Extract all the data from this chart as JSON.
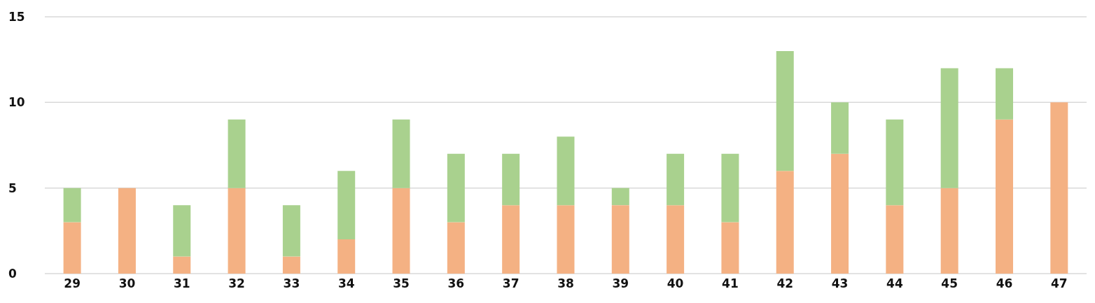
{
  "chart_data": {
    "type": "bar",
    "stacked": true,
    "categories": [
      "29",
      "30",
      "31",
      "32",
      "33",
      "34",
      "35",
      "36",
      "37",
      "38",
      "39",
      "40",
      "41",
      "42",
      "43",
      "44",
      "45",
      "46",
      "47"
    ],
    "series": [
      {
        "color": "#f4b183",
        "values": [
          3,
          5,
          1,
          5,
          1,
          2,
          5,
          3,
          4,
          4,
          4,
          4,
          3,
          6,
          7,
          4,
          5,
          9,
          10
        ]
      },
      {
        "color": "#a9d18e",
        "values": [
          2,
          0,
          3,
          4,
          3,
          4,
          4,
          4,
          3,
          4,
          1,
          3,
          4,
          7,
          3,
          5,
          7,
          3,
          0
        ]
      }
    ],
    "ylim": [
      0,
      15
    ],
    "yticks": [
      0,
      5,
      10,
      15
    ],
    "grid": "y",
    "legend": false
  }
}
